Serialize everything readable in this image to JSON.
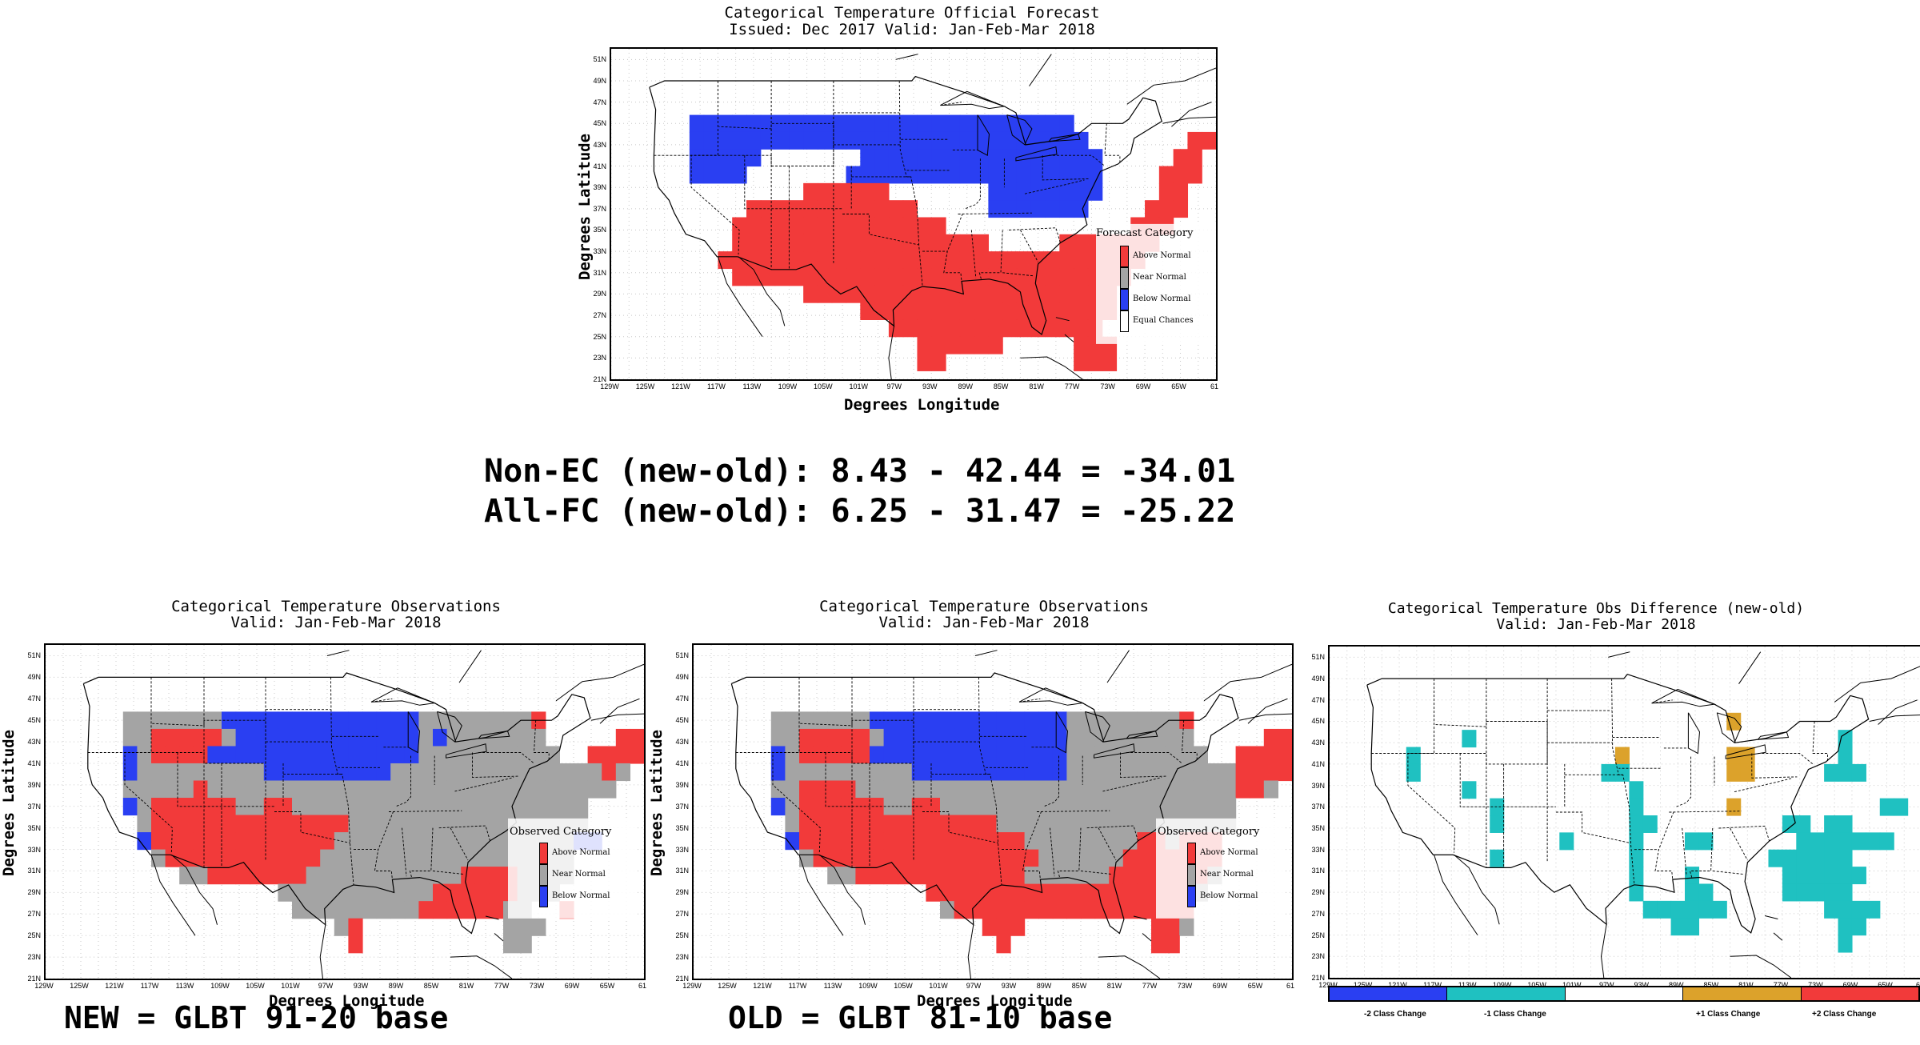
{
  "colors": {
    "above": "#f23a3a",
    "near": "#a4a4a4",
    "below": "#2a3ff2",
    "equal": "#ffffff",
    "minus2": "#2a3ff2",
    "minus1": "#1fc1c1",
    "zero": "#ffffff",
    "plus1": "#dca22b",
    "plus2": "#f23a3a"
  },
  "axis": {
    "y_ticks": [
      "51N",
      "49N",
      "47N",
      "45N",
      "43N",
      "41N",
      "39N",
      "37N",
      "35N",
      "33N",
      "31N",
      "29N",
      "27N",
      "25N",
      "23N",
      "21N"
    ],
    "x_ticks": [
      "129W",
      "125W",
      "121W",
      "117W",
      "113W",
      "109W",
      "105W",
      "101W",
      "97W",
      "93W",
      "89W",
      "85W",
      "81W",
      "77W",
      "73W",
      "69W",
      "65W",
      "61"
    ],
    "xlabel": "Degrees Longitude",
    "ylabel": "Degrees Latitude"
  },
  "forecast": {
    "title1": "Categorical Temperature Official Forecast",
    "title2": "Issued: Dec 2017 Valid: Jan-Feb-Mar 2018",
    "legend_title": "Forecast Category",
    "legend": [
      "Above Normal",
      "Near Normal",
      "Below Normal",
      "Equal Chances"
    ]
  },
  "stats": {
    "line1": "Non-EC (new-old): 8.43 - 42.44 = -34.01",
    "line2": "All-FC (new-old): 6.25 - 31.47 = -25.22"
  },
  "obs_new": {
    "title1": "Categorical Temperature Observations",
    "title2": "Valid: Jan-Feb-Mar 2018",
    "legend_title": "Observed Category",
    "legend": [
      "Above Normal",
      "Near Normal",
      "Below Normal"
    ],
    "caption": "NEW = GLBT 91-20 base"
  },
  "obs_old": {
    "title1": "Categorical Temperature Observations",
    "title2": "Valid: Jan-Feb-Mar 2018",
    "legend_title": "Observed Category",
    "legend": [
      "Above Normal",
      "Near Normal",
      "Below Normal"
    ],
    "caption": "OLD = GLBT 81-10 base"
  },
  "diff": {
    "title1": "Categorical Temperature Obs Difference (new-old)",
    "title2": "Valid: Jan-Feb-Mar 2018",
    "colorbar": [
      "-2 Class Change",
      "-1 Class Change",
      "+1 Class Change",
      "+2 Class Change"
    ]
  },
  "grids": {
    "forecast": [
      "..........................................",
      "..........................................",
      "...BBBBBBBBBBBBBBBBBBBBBBBBBBB............",
      "...BBBBBBBBBBBBBBBBBBBBBBBBBBBB.......AA..",
      "...BBBBB.......BBBBBBBBBBBBBBBBB.....AA...",
      "...BBBB.......BBBBBBBBBBBBBBBBBB....AAA...",
      "...........AAAAAA.......BBBBBBBB....AA....",
      ".......AAAAAAAAAAAA.....BBBBBBB....AAA....",
      "......AAAAAAAAAAAAAAA.............AAA.....",
      "......AAAAAAAAAAAAAAAAAA.....AAAAAAA......",
      ".....AAAAAAAAAAAAAAAAAAAAAAAAAAAAAA.......",
      "......AAAAAAAAAAAAAAAAAAAAAAAAAAAA........",
      "...........AAAAAAAAAAAAAAAAAAAAAA.........",
      "...............AAAAAAAAAAAAAAAAAA.........",
      ".................AAAAAAAAAAAAAAA..........",
      "...................AAAAAA.....AAA.........",
      "...................AA.........AAA.........",
      "..........................................",
      "..........................................",
      ".........................................."
    ],
    "obs_new": [
      "..........................................",
      "..........................................",
      "...NNNNNNNBBBBBBBBBBBBBBNNNNNNNNA.........",
      "...NNAAAAANBBBBBBBBBBBBBNBNNNNNNN.....AA..",
      "...BNAAAABBBBBBBBBBBBBBBNNNNNNNNNN..AAAA..",
      "...BNNNNNNNNNBBBBBBBBBNNNNNNNNNNNNNNNAN...",
      "...NNNNNANNNNNNNNNNNNNNNNNNNNNNNNNNNNN....",
      "...BNAAAAAANNAANNNNNNNNNNNNNNNNNNNNN......",
      "....NAAAAAAAAAAAAAANNNNNNNNNNNNNNNNN......",
      "....BAAAAAAAAAAAAANNNNNNNNNNNNNNNNNBB.....",
      ".....NAAAAAAAAAAANNNNNNNNNNNNNNNNNN.......",
      ".......NNAAAAAAANNNNNNNNNNNAAAANNNN.......",
      "..............NNNNNNNNNNNAAAAAANNN........",
      "...............NNNNNNNNNAAAAAANN..A.......",
      "..................NA..........NNN.........",
      "...................A..........NN..........",
      "..........................................",
      "..........................................",
      "..........................................",
      ".........................................."
    ],
    "obs_old": [
      "..........................................",
      "..........................................",
      "...NNNNNNNBBBBBBBBBBBBBBNNNNNNNNA.........",
      "...NNAAAAANBBBBBBBBBBBBBNNNNNNNNN.....AA..",
      "...BNAAAAABBBBBBBBBBBBBBNNNNNNNNNN..AAAA..",
      "...BNNNNNNNNNBBBBBBBBBBBNNNNNNNNNNNNAAAA..",
      "...NNAAAANNNNNNNNNNNNNNNNNNNNNNNNNNNAAN...",
      "...BNAAAAAANNAANNNNNNNNNNNNNNNNNNNNN......",
      "....NAAAAAAAAAAAAAANNNNNNNNNNNNNNNNN......",
      "....BAAAAAAAAAAAAAAAANNNNNNNNAANAAA.......",
      ".....NAAAAAAAAAAAAAAAANNNNNNAAAAAAA.......",
      ".......NNAAAAAAAAAAAANNNNNNAAAAAAAN.......",
      "..............AAAAAAAAAAAAAAAAAAAN........",
      "...............NAAAAAAAAAAAAAAAAA.........",
      "..................AAA.........AAN.........",
      "...................A..........AA..........",
      "..........................................",
      "..........................................",
      "..........................................",
      ".........................................."
    ],
    "diff": [
      "..........................................",
      "..........................................",
      "..........................P...............",
      ".......C..........................C.......",
      "...C..............P.......PP......C.......",
      "...C.............CC.......PP.....CCC......",
      ".......C...........C....................",
      ".........C.........C......P..........CC...",
      ".........C.........CC.........CC.CC.......",
      "..............C....C...CC......CCCCCCC....",
      ".........C.........C.........CCCCCC.......",
      "...................C...C......CCCCCC......",
      "...................C...CC.....CCCCC.......",
      "....................CCCCCC.......CCCC.....",
      "......................CC..........CC......",
      "..................................C.......",
      "..........................................",
      "..........................................",
      "..........................................",
      ".........................................."
    ]
  }
}
